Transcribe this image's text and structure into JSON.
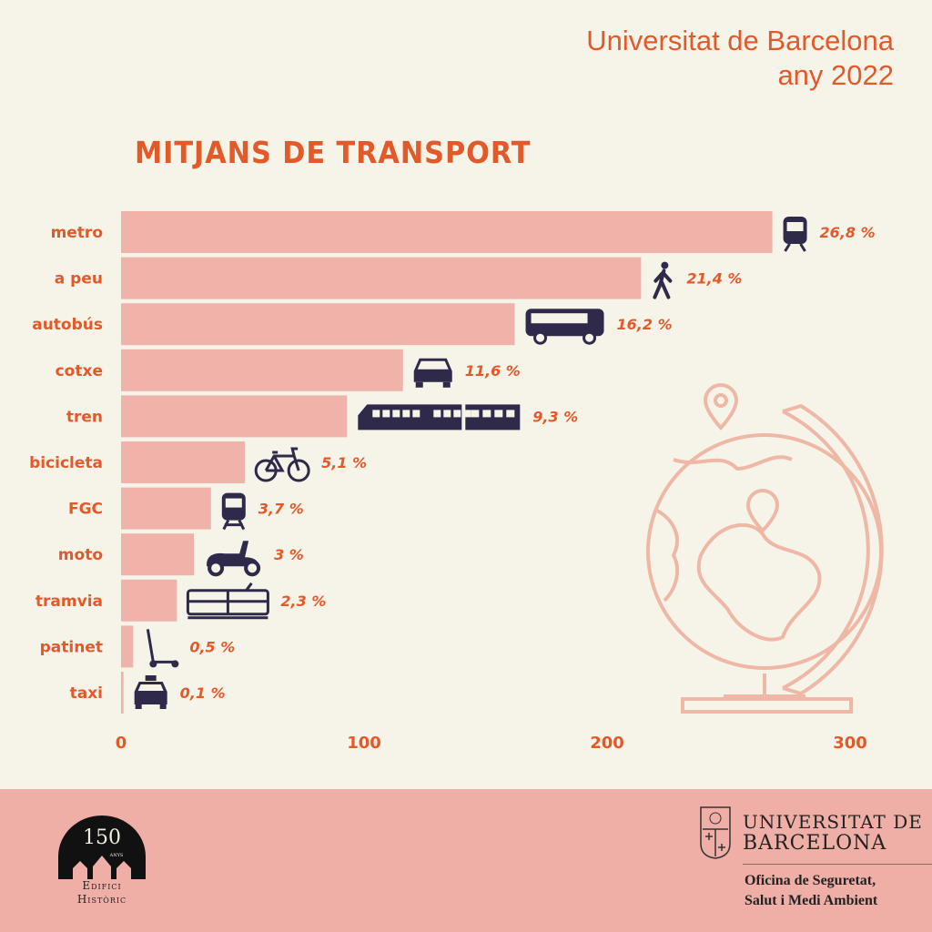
{
  "header": {
    "line1": "Universitat de Barcelona",
    "line2": "any 2022"
  },
  "chart_data": {
    "type": "bar",
    "orientation": "horizontal",
    "title": "MITJANS DE TRANSPORT",
    "categories": [
      "metro",
      "a peu",
      "autobús",
      "cotxe",
      "tren",
      "bicicleta",
      "FGC",
      "moto",
      "tramvia",
      "patinet",
      "taxi"
    ],
    "values": [
      268,
      214,
      162,
      116,
      93,
      51,
      37,
      30,
      23,
      5,
      1
    ],
    "data_labels": [
      "26,8 %",
      "21,4 %",
      "16,2 %",
      "11,6 %",
      "9,3 %",
      "5,1 %",
      "3,7 %",
      "3 %",
      "2,3 %",
      "0,5 %",
      "0,1 %"
    ],
    "icons": [
      "metro-icon",
      "walking-person-icon",
      "bus-icon",
      "car-icon",
      "train-icon",
      "bicycle-icon",
      "fgc-train-icon",
      "scooter-moto-icon",
      "tram-icon",
      "kick-scooter-icon",
      "taxi-icon"
    ],
    "xticks": [
      0,
      100,
      200,
      300
    ],
    "xlim": [
      0,
      300
    ],
    "grid": false,
    "colors": {
      "bar": "#f0b3aa",
      "text": "#e2592a",
      "icon": "#2f2a4a"
    }
  },
  "footer": {
    "logo_left": {
      "number": "150",
      "anys": "ANYS",
      "line1": "Edifici",
      "line2": "Històric"
    },
    "university": {
      "line1": "UNIVERSITAT DE",
      "line2": "BARCELONA"
    },
    "office": {
      "line1": "Oficina de Seguretat,",
      "line2": "Salut i Medi Ambient"
    }
  }
}
